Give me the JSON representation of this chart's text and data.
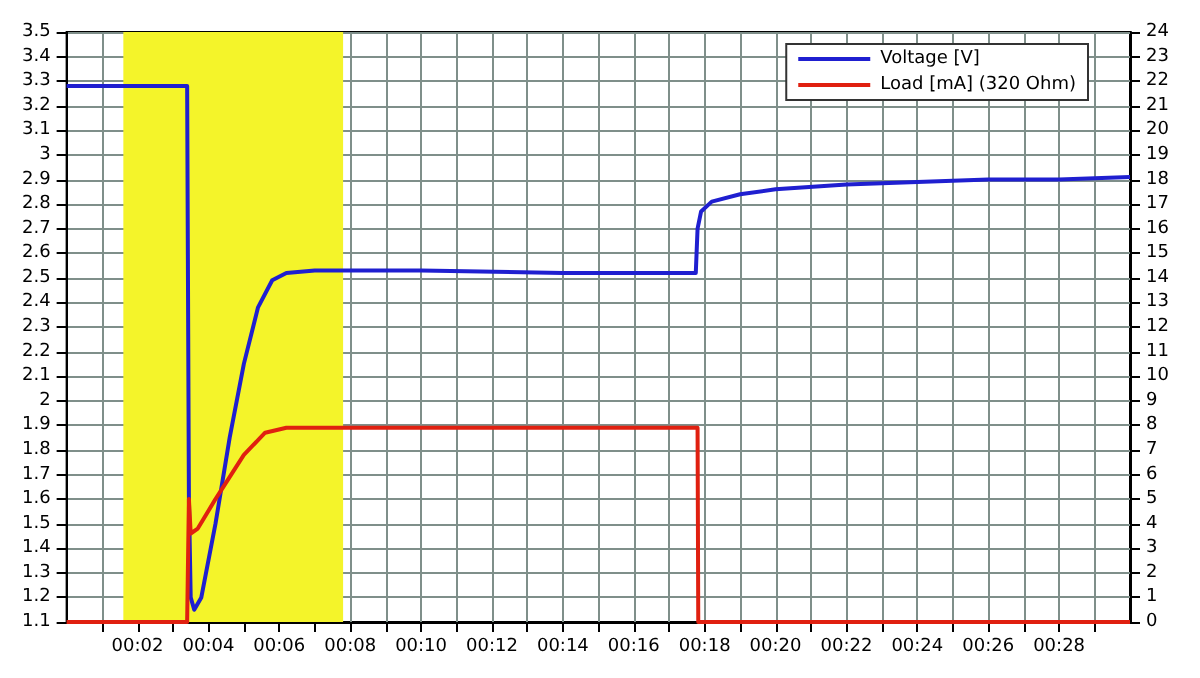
{
  "chart_data": {
    "type": "line",
    "series": [
      {
        "name": "Voltage [V]",
        "color": "#1f1fd0",
        "x": [
          0,
          3.4,
          3.45,
          3.5,
          3.6,
          3.8,
          4.2,
          4.6,
          5,
          5.4,
          5.8,
          6.2,
          7,
          10,
          14,
          17.75,
          17.8,
          17.9,
          18.2,
          19,
          20,
          22,
          24,
          26,
          28,
          30
        ],
        "values": [
          3.28,
          3.28,
          1.6,
          1.2,
          1.15,
          1.2,
          1.5,
          1.85,
          2.15,
          2.38,
          2.49,
          2.52,
          2.53,
          2.53,
          2.52,
          2.52,
          2.7,
          2.77,
          2.81,
          2.84,
          2.86,
          2.88,
          2.89,
          2.9,
          2.9,
          2.91
        ]
      },
      {
        "name": "Load [mA] (320 Ohm)",
        "color": "#e02010",
        "axis": "y2",
        "x": [
          0,
          3.4,
          3.45,
          3.5,
          3.7,
          4.2,
          5,
          5.6,
          6.2,
          17.8,
          17.82,
          30
        ],
        "values": [
          0,
          0,
          5,
          3.6,
          3.8,
          5,
          6.8,
          7.7,
          7.9,
          7.9,
          0,
          0
        ]
      }
    ],
    "xlim": [
      0,
      30
    ],
    "xticks": [
      {
        "value": 1,
        "label": null
      },
      {
        "value": 2,
        "label": "00:02"
      },
      {
        "value": 3,
        "label": null
      },
      {
        "value": 4,
        "label": "00:04"
      },
      {
        "value": 5,
        "label": null
      },
      {
        "value": 6,
        "label": "00:06"
      },
      {
        "value": 7,
        "label": null
      },
      {
        "value": 8,
        "label": "00:08"
      },
      {
        "value": 9,
        "label": null
      },
      {
        "value": 10,
        "label": "00:10"
      },
      {
        "value": 11,
        "label": null
      },
      {
        "value": 12,
        "label": "00:12"
      },
      {
        "value": 13,
        "label": null
      },
      {
        "value": 14,
        "label": "00:14"
      },
      {
        "value": 15,
        "label": null
      },
      {
        "value": 16,
        "label": "00:16"
      },
      {
        "value": 17,
        "label": null
      },
      {
        "value": 18,
        "label": "00:18"
      },
      {
        "value": 19,
        "label": null
      },
      {
        "value": 20,
        "label": "00:20"
      },
      {
        "value": 21,
        "label": null
      },
      {
        "value": 22,
        "label": "00:22"
      },
      {
        "value": 23,
        "label": null
      },
      {
        "value": 24,
        "label": "00:24"
      },
      {
        "value": 25,
        "label": null
      },
      {
        "value": 26,
        "label": "00:26"
      },
      {
        "value": 27,
        "label": null
      },
      {
        "value": 28,
        "label": "00:28"
      },
      {
        "value": 29,
        "label": null
      }
    ],
    "ylim": [
      1.1,
      3.5
    ],
    "yticks": [
      1.1,
      1.2,
      1.3,
      1.4,
      1.5,
      1.6,
      1.7,
      1.8,
      1.9,
      2,
      2.1,
      2.2,
      2.3,
      2.4,
      2.5,
      2.6,
      2.7,
      2.8,
      2.9,
      3,
      3.1,
      3.2,
      3.3,
      3.4,
      3.5
    ],
    "y2lim": [
      0,
      24
    ],
    "y2ticks": [
      0,
      1,
      2,
      3,
      4,
      5,
      6,
      7,
      8,
      9,
      10,
      11,
      12,
      13,
      14,
      15,
      16,
      17,
      18,
      19,
      20,
      21,
      22,
      23,
      24
    ],
    "bands": [
      {
        "axis": "x",
        "from": 1.6,
        "to": 7.8,
        "color": "#f4f42a"
      }
    ],
    "grid": true,
    "legend": "top right",
    "marker": "none",
    "line_style": "solid"
  }
}
